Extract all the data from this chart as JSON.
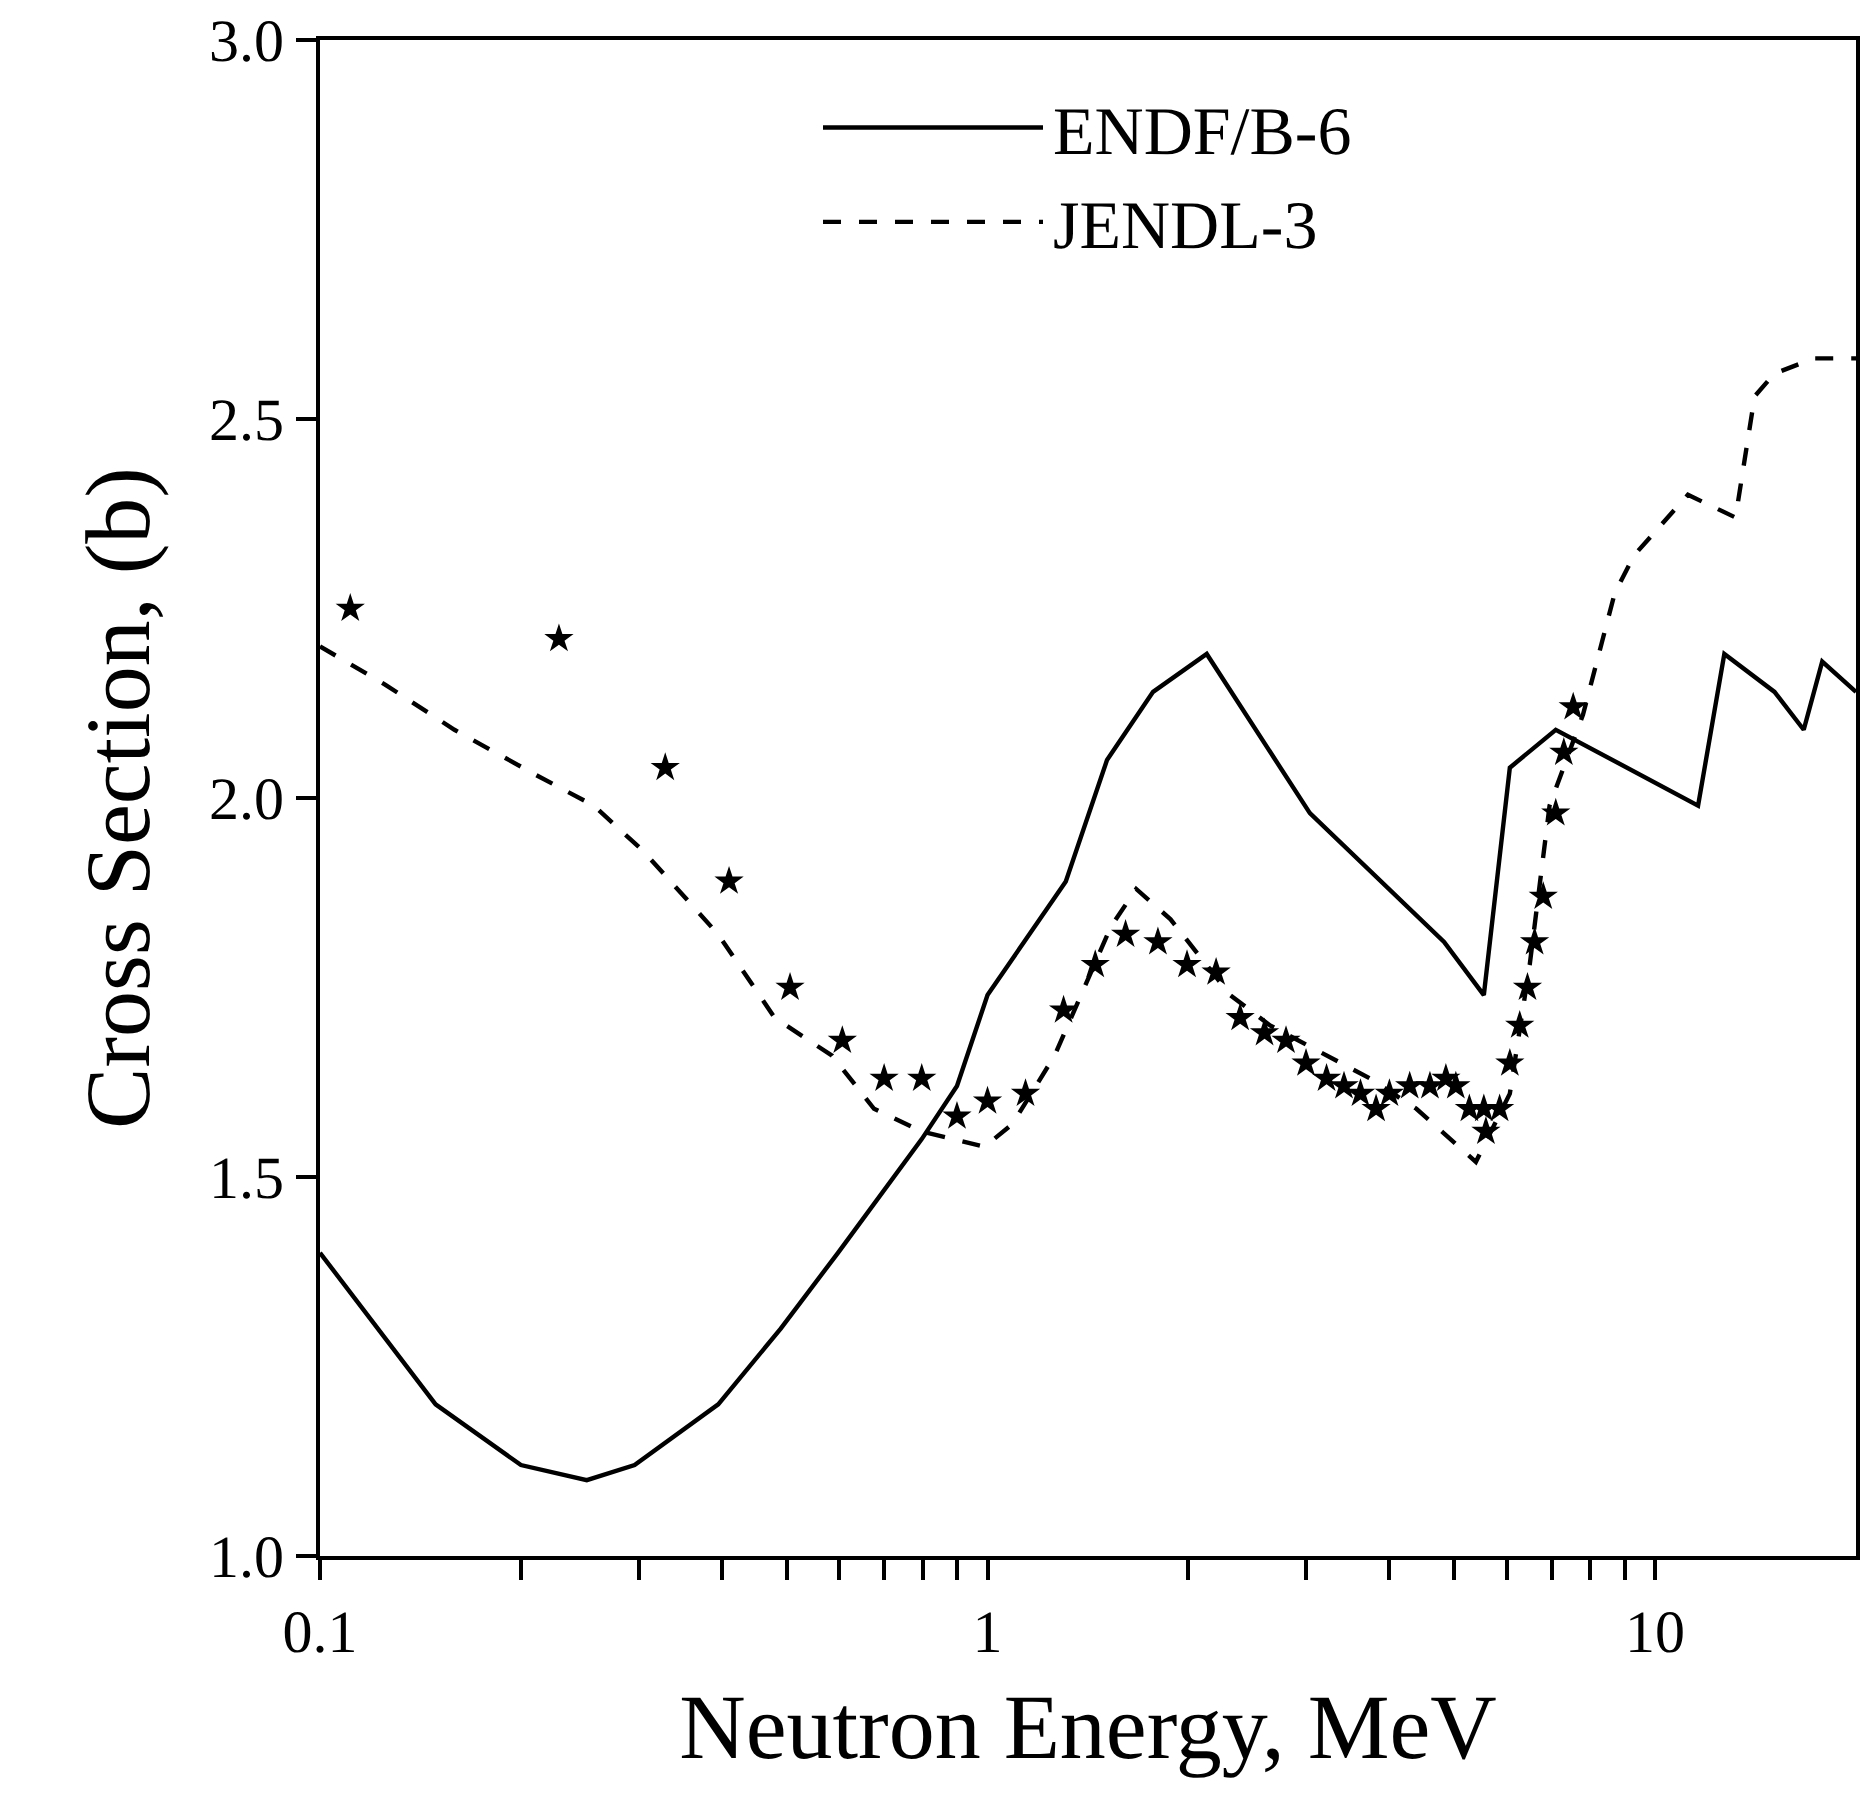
{
  "chart_data": {
    "type": "line",
    "xlabel": "Neutron Energy, MeV",
    "ylabel": "Cross Section, (b)",
    "log": "x",
    "legend": "top",
    "xlim": [
      0.1,
      20
    ],
    "ylim": [
      1.0,
      3.0
    ],
    "xticks": [
      0.1,
      {
        "value": 0.2,
        "label": null
      },
      {
        "value": 0.3,
        "label": null
      },
      {
        "value": 0.4,
        "label": null
      },
      {
        "value": 0.5,
        "label": null
      },
      {
        "value": 0.6,
        "label": null
      },
      {
        "value": 0.7,
        "label": null
      },
      {
        "value": 0.8,
        "label": null
      },
      {
        "value": 0.9,
        "label": null
      },
      1,
      {
        "value": 2,
        "label": null
      },
      {
        "value": 3,
        "label": null
      },
      {
        "value": 4,
        "label": null
      },
      {
        "value": 5,
        "label": null
      },
      {
        "value": 6,
        "label": null
      },
      {
        "value": 7,
        "label": null
      },
      {
        "value": 8,
        "label": null
      },
      {
        "value": 9,
        "label": null
      },
      10
    ],
    "yticks": [
      {
        "value": 1.0,
        "label": "1.0"
      },
      1.5,
      {
        "value": 2.0,
        "label": "2.0"
      },
      2.5,
      {
        "value": 3.0,
        "label": "3.0"
      }
    ],
    "series": [
      {
        "name": "ENDF/B-6",
        "line_style": "solid",
        "color": "#000000",
        "x": [
          0.1,
          0.149,
          0.2,
          0.251,
          0.296,
          0.395,
          0.49,
          0.597,
          0.797,
          0.9,
          1.0,
          1.31,
          1.51,
          1.77,
          2.13,
          3.04,
          4.83,
          5.54,
          6.06,
          7.1,
          11.6,
          12.7,
          15.1,
          16.7,
          17.8,
          20
        ],
        "values": [
          1.4,
          1.2,
          1.12,
          1.1,
          1.12,
          1.2,
          1.3,
          1.4,
          1.55,
          1.62,
          1.74,
          1.89,
          2.05,
          2.14,
          2.19,
          1.98,
          1.81,
          1.74,
          2.04,
          2.09,
          1.99,
          2.19,
          2.14,
          2.09,
          2.18,
          2.14
        ]
      },
      {
        "name": "JENDL-3",
        "line_style": "dashed",
        "color": "#000000",
        "x": [
          0.1,
          0.125,
          0.159,
          0.211,
          0.257,
          0.305,
          0.395,
          0.48,
          0.585,
          0.676,
          0.797,
          0.99,
          1.09,
          1.26,
          1.53,
          1.67,
          1.88,
          2.31,
          2.65,
          3.74,
          4.39,
          5.39,
          6.06,
          6.49,
          6.95,
          7.8,
          8.7,
          9.3,
          11.2,
          13.2,
          14.1,
          15.1,
          17.3,
          20
        ],
        "values": [
          2.2,
          2.15,
          2.09,
          2.03,
          1.99,
          1.93,
          1.82,
          1.71,
          1.66,
          1.59,
          1.56,
          1.54,
          1.57,
          1.66,
          1.83,
          1.88,
          1.84,
          1.74,
          1.7,
          1.63,
          1.59,
          1.52,
          1.61,
          1.78,
          1.99,
          2.11,
          2.27,
          2.32,
          2.4,
          2.37,
          2.53,
          2.56,
          2.58,
          2.58
        ]
      },
      {
        "type": "scatter",
        "marker": "star",
        "color": "#000000",
        "x": [
          0.111,
          0.228,
          0.329,
          0.41,
          0.506,
          0.606,
          0.7,
          0.797,
          0.9,
          1.0,
          1.14,
          1.3,
          1.45,
          1.61,
          1.8,
          1.99,
          2.2,
          2.39,
          2.6,
          2.8,
          3.0,
          3.22,
          3.42,
          3.62,
          3.82,
          4.0,
          4.29,
          4.6,
          4.86,
          5.03,
          5.27,
          5.54,
          5.58,
          5.85,
          6.06,
          6.27,
          6.44,
          6.6,
          6.8,
          7.1,
          7.3,
          7.54
        ],
        "values": [
          2.25,
          2.21,
          2.04,
          1.89,
          1.75,
          1.68,
          1.63,
          1.63,
          1.58,
          1.6,
          1.61,
          1.72,
          1.78,
          1.82,
          1.81,
          1.78,
          1.77,
          1.71,
          1.69,
          1.68,
          1.65,
          1.63,
          1.62,
          1.61,
          1.59,
          1.61,
          1.62,
          1.62,
          1.63,
          1.62,
          1.59,
          1.59,
          1.56,
          1.59,
          1.65,
          1.7,
          1.75,
          1.81,
          1.87,
          1.98,
          2.06,
          2.12
        ]
      }
    ]
  }
}
